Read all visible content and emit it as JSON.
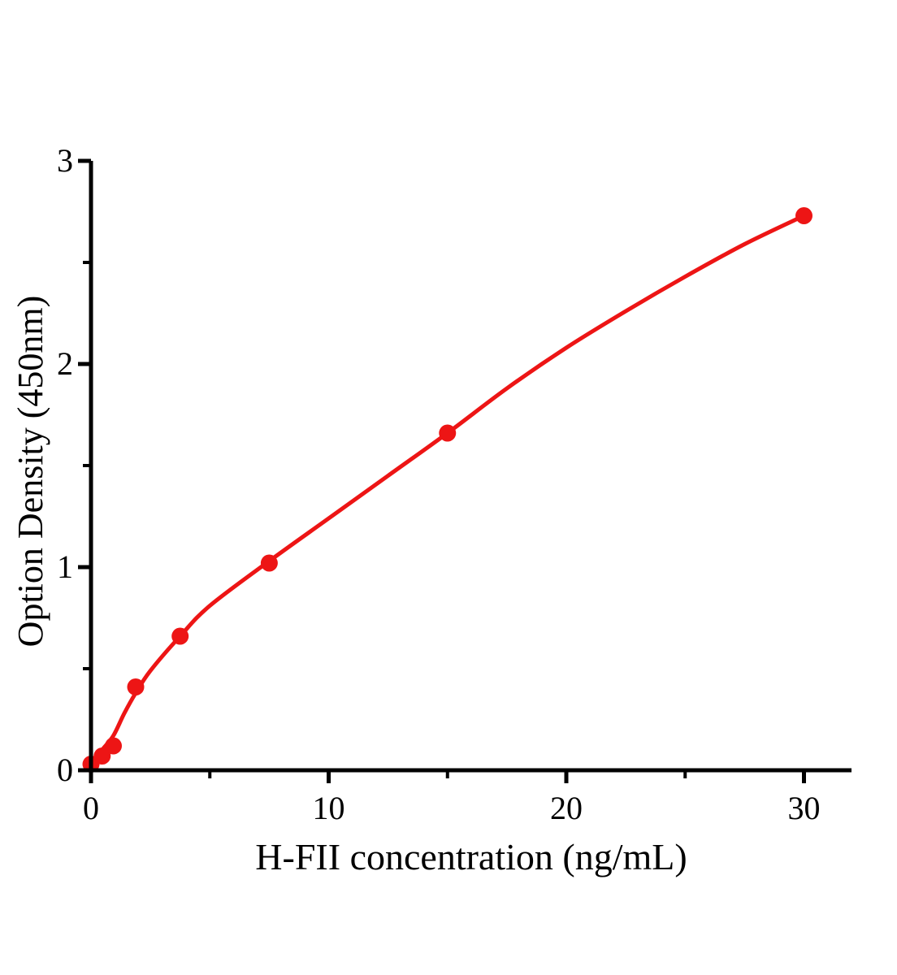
{
  "chart_data": {
    "type": "scatter",
    "title": "",
    "xlabel": "H-FII concentration (ng/mL)",
    "ylabel": "Option Density (450nm)",
    "xlim": [
      0,
      32
    ],
    "ylim": [
      0,
      3
    ],
    "grid": false,
    "legend_position": "none",
    "axis_color": "#000000",
    "background_color": "#ffffff",
    "x_major_ticks": [
      0,
      10,
      20,
      30
    ],
    "x_minor_ticks": [
      5,
      15,
      25
    ],
    "y_major_ticks": [
      0,
      1,
      2,
      3
    ],
    "y_minor_ticks": [
      0.5,
      1.5,
      2.5
    ],
    "x_tick_labels": [
      "0",
      "10",
      "20",
      "30"
    ],
    "y_tick_labels": [
      "0",
      "1",
      "2",
      "3"
    ],
    "series": [
      {
        "marker": "circle",
        "color": "#ed1515",
        "x": [
          0,
          0.47,
          0.94,
          1.88,
          3.75,
          7.5,
          15,
          30
        ],
        "y": [
          0.03,
          0.07,
          0.12,
          0.41,
          0.66,
          1.02,
          1.66,
          2.73
        ]
      }
    ],
    "fit_curve": {
      "color": "#ed1515",
      "x": [
        0,
        0.2,
        0.47,
        0.94,
        1.4,
        1.88,
        2.5,
        3.75,
        5,
        7.5,
        10,
        12.5,
        15,
        17.5,
        20,
        22.5,
        25,
        27.5,
        30
      ],
      "y": [
        0,
        0.05,
        0.1,
        0.17,
        0.28,
        0.38,
        0.49,
        0.66,
        0.81,
        1.03,
        1.24,
        1.45,
        1.66,
        1.88,
        2.08,
        2.26,
        2.43,
        2.59,
        2.73
      ]
    }
  }
}
